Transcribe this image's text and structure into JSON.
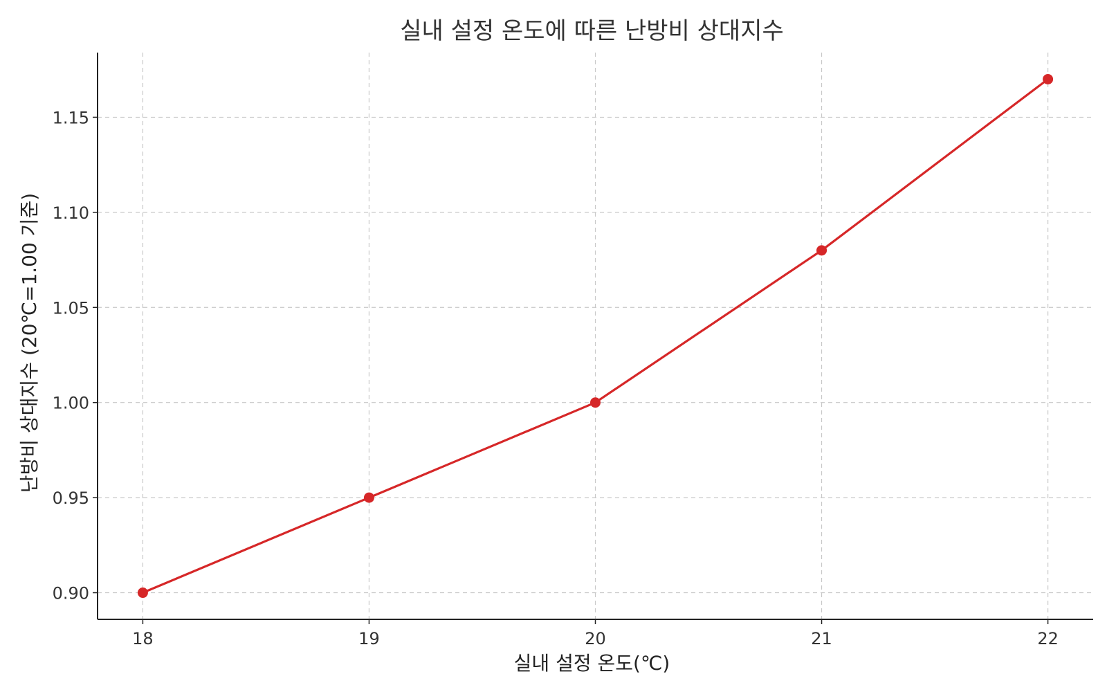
{
  "chart_data": {
    "type": "line",
    "title": "실내 설정 온도에 따른 난방비 상대지수",
    "xlabel": "실내 설정 온도(℃)",
    "ylabel": "난방비 상대지수 (20℃=1.00 기준)",
    "x": [
      18,
      19,
      20,
      21,
      22
    ],
    "series": [
      {
        "values": [
          0.9,
          0.95,
          1.0,
          1.08,
          1.17
        ],
        "color": "#d62728",
        "marker": "circle"
      }
    ],
    "x_ticks": [
      "18",
      "19",
      "20",
      "21",
      "22"
    ],
    "y_ticks": [
      "0.90",
      "0.95",
      "1.00",
      "1.05",
      "1.10",
      "1.15"
    ],
    "y_tick_values": [
      0.9,
      0.95,
      1.0,
      1.05,
      1.1,
      1.15
    ],
    "xlim": [
      17.8,
      22.2
    ],
    "ylim": [
      0.886,
      1.184
    ],
    "grid": true,
    "legend": "none"
  }
}
